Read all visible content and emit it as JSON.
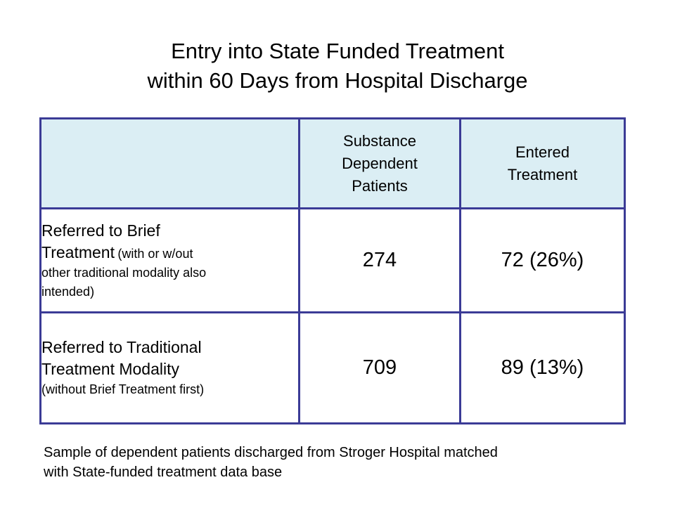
{
  "title": {
    "line1": "Entry into State Funded Treatment",
    "line2": "within 60 Days from Hospital Discharge"
  },
  "table": {
    "headers": {
      "col1": [
        "Substance",
        "Dependent",
        "Patients"
      ],
      "col2": [
        "Entered",
        "Treatment"
      ]
    },
    "rows": [
      {
        "label_main_1": "Referred to Brief",
        "label_main_2": "Treatment",
        "label_note_1": "(with or w/out",
        "label_note_2": "other traditional modality also",
        "label_note_3": "intended)",
        "patients": "274",
        "entered": "72 (26%)"
      },
      {
        "label_main_1": "Referred to Traditional",
        "label_main_2": "Treatment Modality",
        "label_note_1": "(without Brief Treatment first)",
        "patients": "709",
        "entered": "89 (13%)"
      }
    ]
  },
  "footnote": {
    "line1": "Sample of dependent patients discharged from Stroger Hospital matched",
    "line2": "with State-funded treatment data base"
  },
  "colors": {
    "header_fill": "#dbeef4",
    "border": "#3b3b96"
  }
}
